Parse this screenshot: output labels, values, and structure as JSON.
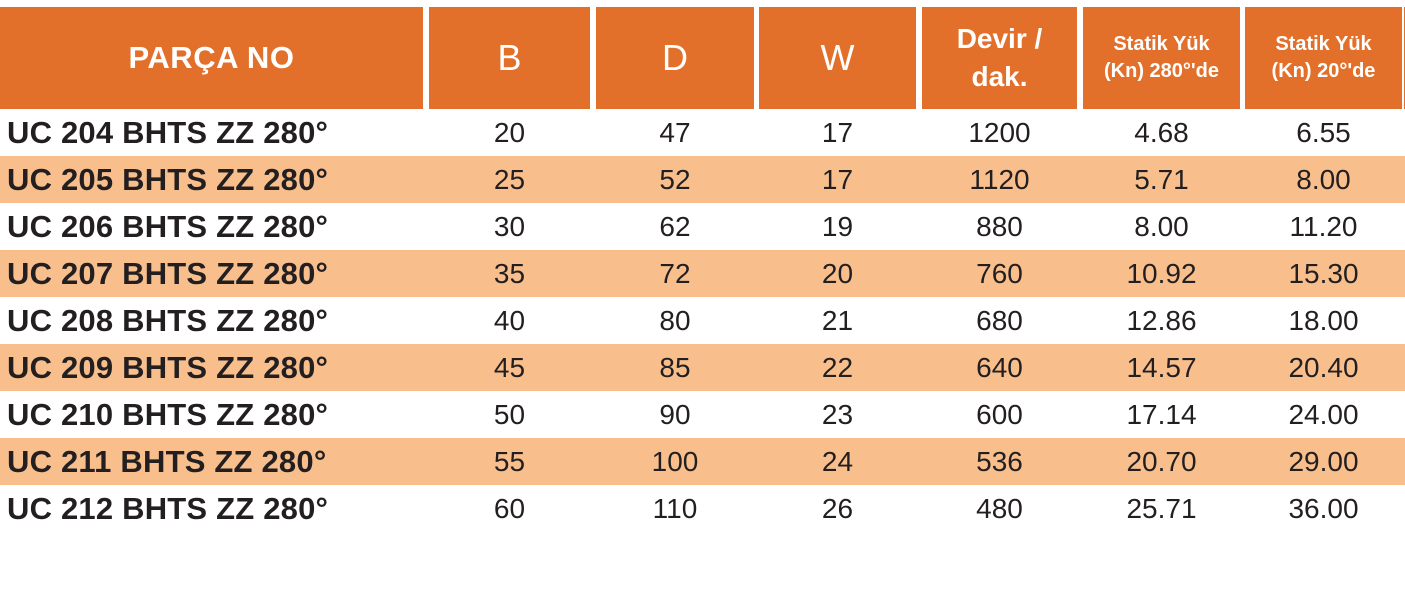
{
  "table": {
    "header": {
      "parca_no": "PARÇA NO",
      "b": "B",
      "d": "D",
      "w": "W",
      "devir_line1": "Devir /",
      "devir_line2": "dak.",
      "statik280_line1": "Statik Yük",
      "statik280_line2": "(Kn) 280°'de",
      "statik20_line1": "Statik Yük",
      "statik20_line2": "(Kn) 20°'de"
    },
    "rows": [
      {
        "parca_no": "UC 204 BHTS ZZ 280°",
        "b": "20",
        "d": "47",
        "w": "17",
        "devir": "1200",
        "statik280": "4.68",
        "statik20": "6.55"
      },
      {
        "parca_no": "UC 205 BHTS ZZ 280°",
        "b": "25",
        "d": "52",
        "w": "17",
        "devir": "1120",
        "statik280": "5.71",
        "statik20": "8.00"
      },
      {
        "parca_no": "UC 206 BHTS ZZ 280°",
        "b": "30",
        "d": "62",
        "w": "19",
        "devir": "880",
        "statik280": "8.00",
        "statik20": "11.20"
      },
      {
        "parca_no": "UC 207 BHTS ZZ 280°",
        "b": "35",
        "d": "72",
        "w": "20",
        "devir": "760",
        "statik280": "10.92",
        "statik20": "15.30"
      },
      {
        "parca_no": "UC 208 BHTS ZZ 280°",
        "b": "40",
        "d": "80",
        "w": "21",
        "devir": "680",
        "statik280": "12.86",
        "statik20": "18.00"
      },
      {
        "parca_no": "UC 209 BHTS ZZ 280°",
        "b": "45",
        "d": "85",
        "w": "22",
        "devir": "640",
        "statik280": "14.57",
        "statik20": "20.40"
      },
      {
        "parca_no": "UC 210 BHTS ZZ 280°",
        "b": "50",
        "d": "90",
        "w": "23",
        "devir": "600",
        "statik280": "17.14",
        "statik20": "24.00"
      },
      {
        "parca_no": "UC 211 BHTS ZZ 280°",
        "b": "55",
        "d": "100",
        "w": "24",
        "devir": "536",
        "statik280": "20.70",
        "statik20": "29.00"
      },
      {
        "parca_no": "UC 212 BHTS ZZ 280°",
        "b": "60",
        "d": "110",
        "w": "26",
        "devir": "480",
        "statik280": "25.71",
        "statik20": "36.00"
      }
    ]
  },
  "colors": {
    "header_bg": "#E2702A",
    "stripe_bg": "#F8BF8D",
    "header_text": "#FFFFFF",
    "body_text": "#231F20"
  }
}
